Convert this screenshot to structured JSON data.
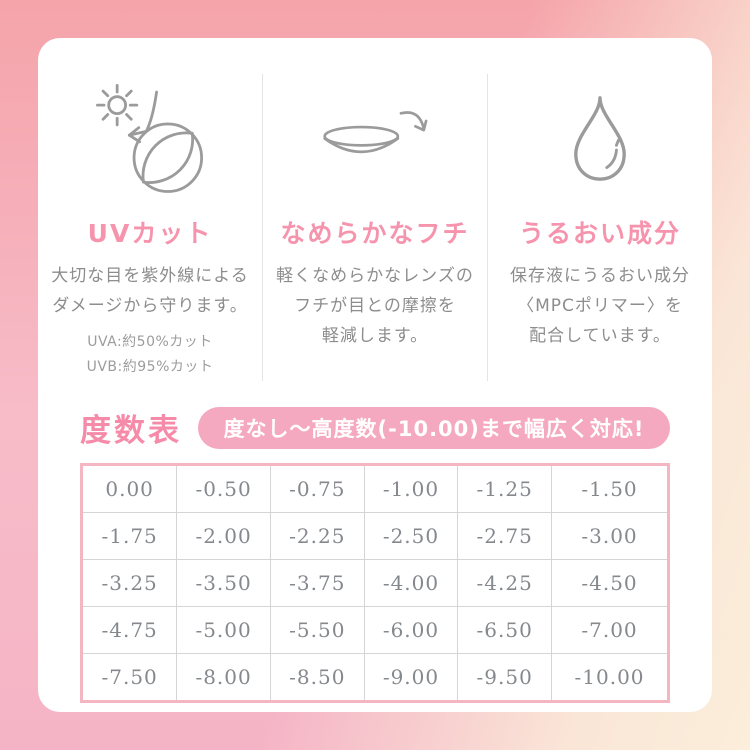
{
  "card": {
    "features": [
      {
        "icon": "sun-uv-lens-icon",
        "title": "UVカット",
        "body_lines": [
          "大切な目を紫外線による",
          "ダメージから守ります。"
        ],
        "notes": [
          "UVA:約50%カット",
          "UVB:約95%カット"
        ]
      },
      {
        "icon": "lens-smooth-edge-icon",
        "title": "なめらかなフチ",
        "body_lines": [
          "軽くなめらかなレンズの",
          "フチが目との摩擦を",
          "軽減します。"
        ]
      },
      {
        "icon": "water-drop-icon",
        "title": "うるおい成分",
        "body_lines": [
          "保存液にうるおい成分",
          "〈MPCポリマー〉を",
          "配合しています。"
        ]
      }
    ],
    "power_section": {
      "heading": "度数表",
      "banner": "度なし〜高度数(-10.00)まで幅広く対応!",
      "table_rows": [
        [
          "0.00",
          "-0.50",
          "-0.75",
          "-1.00",
          "-1.25",
          "-1.50"
        ],
        [
          "-1.75",
          "-2.00",
          "-2.25",
          "-2.50",
          "-2.75",
          "-3.00"
        ],
        [
          "-3.25",
          "-3.50",
          "-3.75",
          "-4.00",
          "-4.25",
          "-4.50"
        ],
        [
          "-4.75",
          "-5.00",
          "-5.50",
          "-6.00",
          "-6.50",
          "-7.00"
        ],
        [
          "-7.50",
          "-8.00",
          "-8.50",
          "-9.00",
          "-9.50",
          "-10.00"
        ]
      ]
    }
  },
  "colors": {
    "accent_pink": "#f58ba8",
    "title_pink": "#f693ad",
    "banner_pink": "#f5a9c1",
    "table_border_pink": "#f4b6c3",
    "icon_gray": "#9b9b9b",
    "text_gray": "#8d8d8d",
    "bg_top_salmon": "#f5a4aa",
    "bg_pink": "#f7bcc8",
    "bg_cream": "#fbeeda"
  }
}
